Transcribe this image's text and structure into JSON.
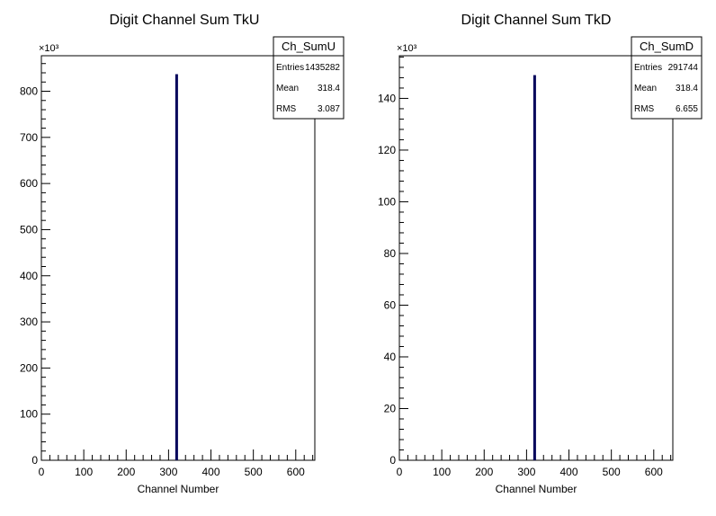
{
  "chart_data": [
    {
      "type": "bar",
      "title": "Digit Channel Sum TkU",
      "xlabel": "Channel Number",
      "ylabel": "",
      "y_multiplier_label": "×10³",
      "xlim": [
        0,
        645
      ],
      "ylim": [
        0,
        877
      ],
      "x_ticks": [
        0,
        100,
        200,
        300,
        400,
        500,
        600
      ],
      "y_ticks": [
        0,
        100,
        200,
        300,
        400,
        500,
        600,
        700,
        800
      ],
      "bins": [
        {
          "x": 318,
          "value": 837
        }
      ],
      "bar_color": "#00005a",
      "stats": {
        "name": "Ch_SumU",
        "rows": [
          {
            "label": "Entries",
            "value": "1435282"
          },
          {
            "label": "Mean",
            "value": "318.4"
          },
          {
            "label": "RMS",
            "value": "3.087"
          }
        ]
      }
    },
    {
      "type": "bar",
      "title": "Digit Channel Sum TkD",
      "xlabel": "Channel Number",
      "ylabel": "",
      "y_multiplier_label": "×10³",
      "xlim": [
        0,
        645
      ],
      "ylim": [
        0,
        156.5
      ],
      "x_ticks": [
        0,
        100,
        200,
        300,
        400,
        500,
        600
      ],
      "y_ticks": [
        0,
        20,
        40,
        60,
        80,
        100,
        120,
        140
      ],
      "bins": [
        {
          "x": 318,
          "value": 149
        }
      ],
      "bar_color": "#00005a",
      "stats": {
        "name": "Ch_SumD",
        "rows": [
          {
            "label": "Entries",
            "value": "291744"
          },
          {
            "label": "Mean",
            "value": "318.4"
          },
          {
            "label": "RMS",
            "value": "6.655"
          }
        ]
      }
    }
  ]
}
